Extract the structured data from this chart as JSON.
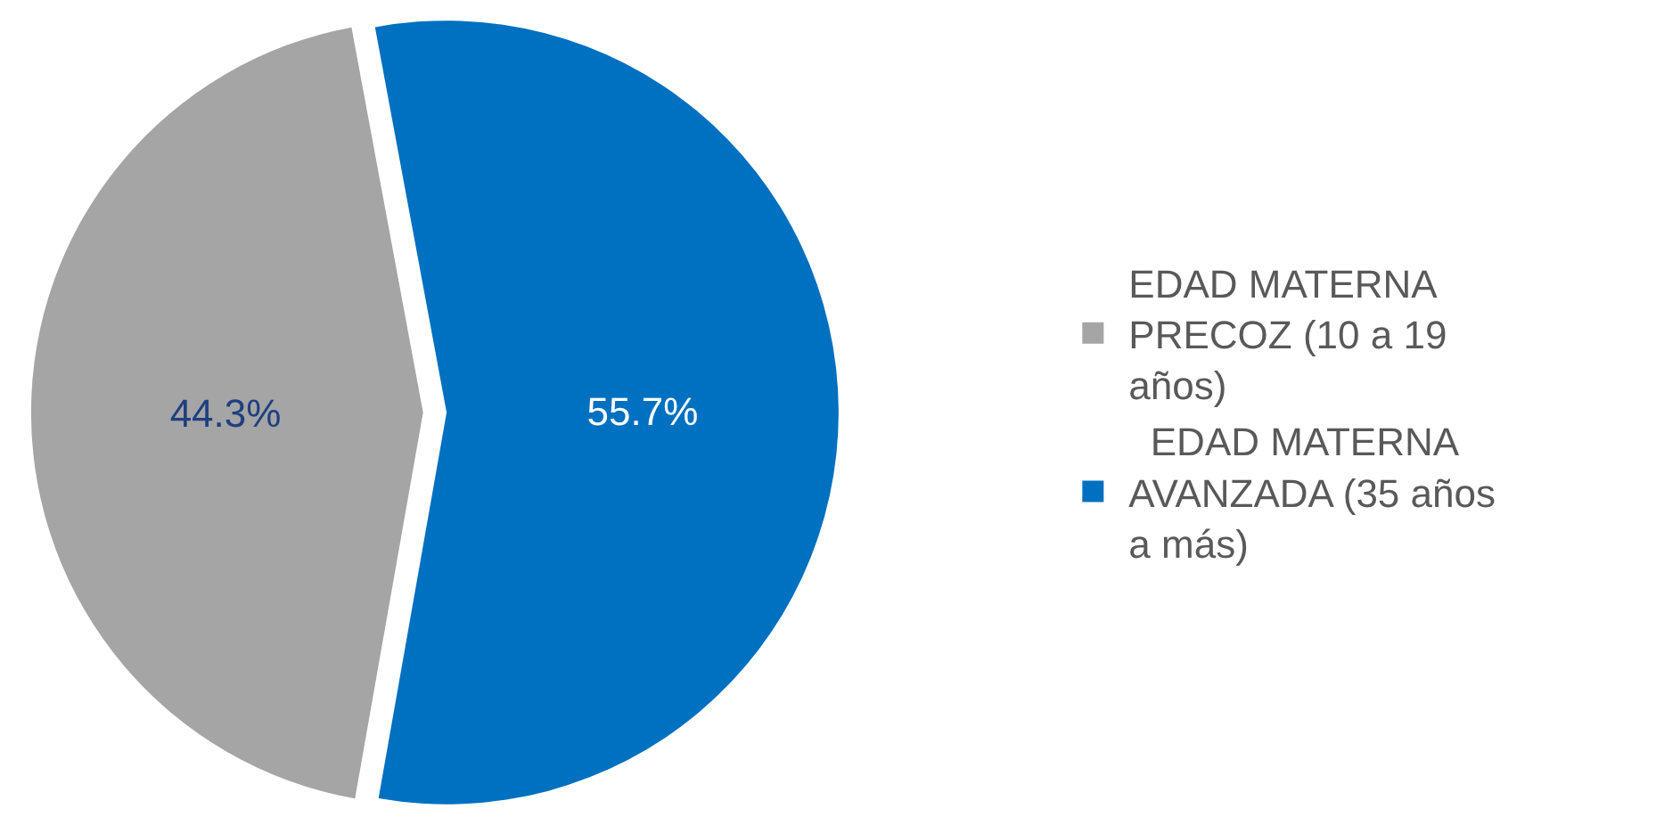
{
  "chart_data": {
    "type": "pie",
    "categories": [
      "EDAD MATERNA PRECOZ (10 a 19 años)",
      " EDAD MATERNA AVANZADA (35 años a más)"
    ],
    "values": [
      44.3,
      55.7
    ],
    "colors": [
      "#a5a5a5",
      "#0070c0"
    ],
    "value_labels": [
      "44.3%",
      "55.7%"
    ],
    "legend": "right"
  }
}
